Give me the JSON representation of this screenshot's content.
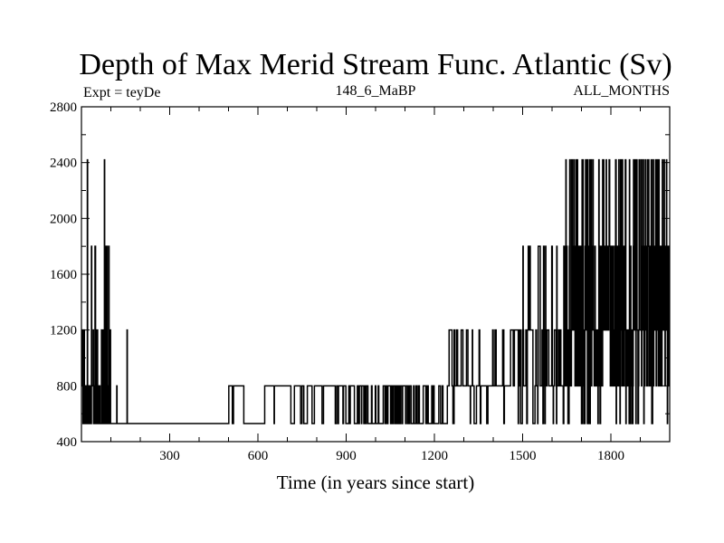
{
  "chart_data": {
    "type": "line",
    "title": "Depth of Max Merid Stream Func. Atlantic (Sv)",
    "subtitle_left": "Expt = teyDe",
    "subtitle_center": "148_6_MaBP",
    "subtitle_right": "ALL_MONTHS",
    "xlabel": "Time (in years since start)",
    "ylabel": "",
    "xlim": [
      0,
      2000
    ],
    "ylim": [
      400,
      2800
    ],
    "x_ticks": [
      300,
      600,
      900,
      1200,
      1500,
      1800
    ],
    "y_ticks": [
      400,
      800,
      1200,
      1600,
      2000,
      2400,
      2800
    ],
    "x_minor_step": 100,
    "y_minor_step": 200,
    "grid": false,
    "levels": [
      530,
      800,
      1200,
      1800,
      2420
    ],
    "series": [
      {
        "name": "",
        "segments": [
          {
            "x_start": 0,
            "x_end": 100,
            "levels": [
              530,
              800,
              1200,
              1800,
              2420
            ],
            "density": 0.85,
            "weights": [
              5,
              3,
              2,
              1,
              0.5
            ]
          },
          {
            "x_start": 100,
            "x_end": 500,
            "base": 530,
            "spikes": [
              [
                120,
                800
              ],
              [
                155,
                1200
              ]
            ]
          },
          {
            "x_start": 500,
            "x_end": 860,
            "levels": [
              530,
              800
            ],
            "density": 0.12,
            "weights": [
              1,
              1
            ]
          },
          {
            "x_start": 860,
            "x_end": 1240,
            "levels": [
              530,
              800
            ],
            "density": 0.45,
            "weights": [
              1,
              1
            ]
          },
          {
            "x_start": 1240,
            "x_end": 1480,
            "levels": [
              530,
              800,
              1200
            ],
            "density": 0.25,
            "weights": [
              1,
              4,
              1.5
            ]
          },
          {
            "x_start": 1480,
            "x_end": 1640,
            "levels": [
              530,
              800,
              1200,
              1800,
              2420
            ],
            "density": 0.45,
            "weights": [
              1,
              3,
              3,
              0.6,
              0.2
            ]
          },
          {
            "x_start": 1640,
            "x_end": 2000,
            "levels": [
              530,
              800,
              1200,
              1800,
              2420
            ],
            "density": 0.95,
            "weights": [
              0.5,
              2,
              3,
              2.5,
              1.5
            ]
          }
        ]
      }
    ]
  }
}
